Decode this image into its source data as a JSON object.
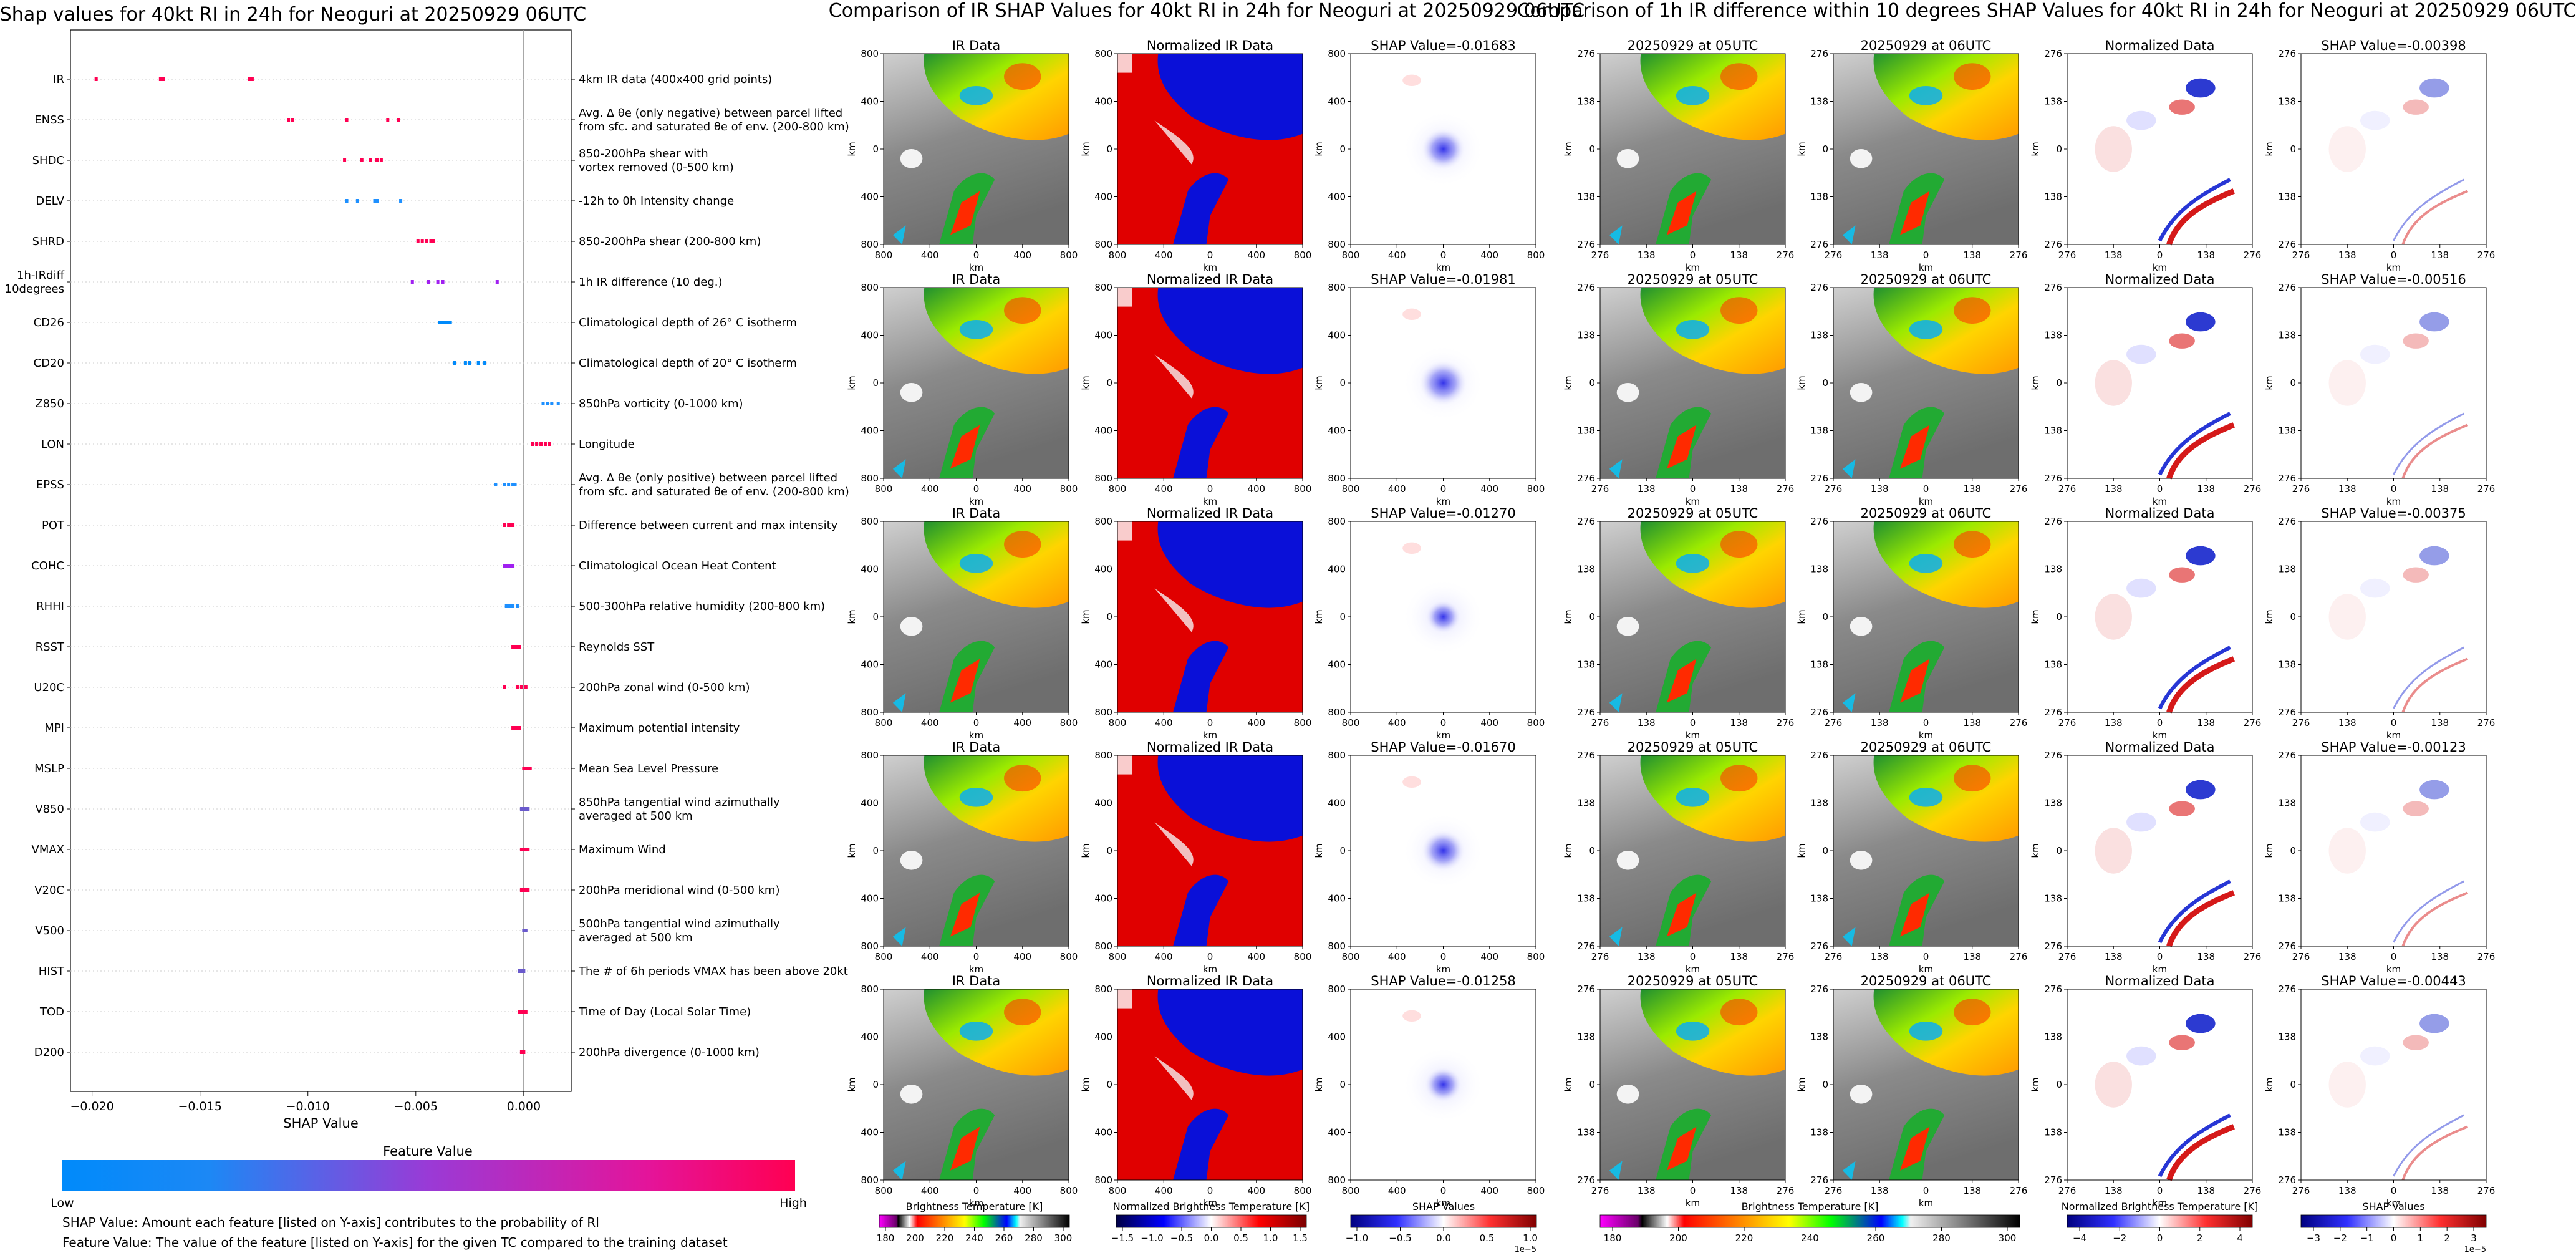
{
  "shap": {
    "title": "Shap values for 40kt RI in 24h for Neoguri at 20250929 06UTC",
    "xlabel": "SHAP Value",
    "colorbar_title": "Feature Value",
    "low_label": "Low",
    "high_label": "High",
    "note1": "SHAP Value: Amount each feature [listed on Y-axis] contributes to the probability of RI",
    "note2": "Feature Value: The value of the feature [listed on Y-axis] for the given TC compared to the training dataset",
    "colors": {
      "low": "#008afb",
      "mid": "#8a2be2",
      "high": "#ff0052"
    }
  },
  "comp1": {
    "title": "Comparison of IR SHAP Values for 40kt RI in 24h for Neoguri at 20250929 06UTC",
    "col_titles": [
      "IR Data",
      "Normalized IR Data"
    ],
    "shap_titles": [
      "SHAP Value=-0.01683",
      "SHAP Value=-0.01981",
      "SHAP Value=-0.01270",
      "SHAP Value=-0.01670",
      "SHAP Value=-0.01258"
    ],
    "ticks": [
      "800",
      "400",
      "0",
      "400",
      "800"
    ],
    "axis_label": "km",
    "cb1_label": "Brightness Temperature [K]",
    "cb1_ticks": [
      "180",
      "200",
      "220",
      "240",
      "260",
      "280",
      "300"
    ],
    "cb2_label": "Normalized Brightness Temperature [K]",
    "cb2_ticks": [
      "−1.5",
      "−1.0",
      "−0.5",
      "0.0",
      "0.5",
      "1.0",
      "1.5"
    ],
    "cb3_label": "SHAP Values",
    "cb3_ticks": [
      "−1.0",
      "−0.5",
      "0.0",
      "0.5",
      "1.0"
    ],
    "cb3_exp": "1e−5"
  },
  "comp2": {
    "title": "Comparison of 1h IR difference within 10 degrees SHAP Values for 40kt RI in 24h for Neoguri at 20250929 06UTC",
    "col_titles": [
      "20250929 at 05UTC",
      "20250929 at 06UTC",
      "Normalized Data"
    ],
    "shap_titles": [
      "SHAP Value=-0.00398",
      "SHAP Value=-0.00516",
      "SHAP Value=-0.00375",
      "SHAP Value=-0.00123",
      "SHAP Value=-0.00443"
    ],
    "ticks": [
      "276",
      "138",
      "0",
      "138",
      "276"
    ],
    "axis_label": "km",
    "cb1_label": "Brightness Temperature [K]",
    "cb1_ticks": [
      "180",
      "200",
      "220",
      "240",
      "260",
      "280",
      "300"
    ],
    "cb2_label": "Normalized Brightness Temperature [K]",
    "cb2_ticks": [
      "−4",
      "−2",
      "0",
      "2",
      "4"
    ],
    "cb3_label": "SHAP Values",
    "cb3_ticks": [
      "−3",
      "−2",
      "−1",
      "0",
      "1",
      "2",
      "3"
    ],
    "cb3_exp": "1e−5"
  },
  "chart_data": [
    {
      "type": "scatter",
      "title": "Shap values for 40kt RI in 24h for Neoguri at 20250929 06UTC",
      "xlabel": "SHAP Value",
      "xlim": [
        -0.021,
        0.0022
      ],
      "xticks": [
        "−0.020",
        "−0.015",
        "−0.010",
        "−0.005",
        "0.000"
      ],
      "xtick_values": [
        -0.02,
        -0.015,
        -0.01,
        -0.005,
        0.0
      ],
      "legend": "colorbar-bottom",
      "series": [
        {
          "name": "IR",
          "label": "4km IR data (400x400 grid points)",
          "color": "#ff0052",
          "values": [
            -0.01981,
            -0.01683,
            -0.0167,
            -0.0127,
            -0.01258
          ]
        },
        {
          "name": "ENSS",
          "label": "Avg. Δ θe (only negative) between parcel lifted\nfrom sfc. and saturated θe of env. (200-800 km)",
          "color": "#ff0052",
          "values": [
            -0.0109,
            -0.0107,
            -0.0082,
            -0.0063,
            -0.0058
          ]
        },
        {
          "name": "SHDC",
          "label": "850-200hPa shear with\nvortex removed (0-500 km)",
          "color": "#ff0052",
          "values": [
            -0.0083,
            -0.0075,
            -0.0071,
            -0.0068,
            -0.0066
          ]
        },
        {
          "name": "DELV",
          "label": "-12h to 0h Intensity change",
          "color": "#1e90ff",
          "values": [
            -0.0082,
            -0.0077,
            -0.0069,
            -0.0068,
            -0.0057
          ]
        },
        {
          "name": "SHRD",
          "label": "850-200hPa shear (200-800 km)",
          "color": "#ff0052",
          "values": [
            -0.0049,
            -0.0047,
            -0.0045,
            -0.0043,
            -0.0042
          ]
        },
        {
          "name": "1h-IRdiff\n10degrees",
          "label": "1h IR difference (10 deg.)",
          "color": "#a020f0",
          "values": [
            -0.00516,
            -0.00443,
            -0.00398,
            -0.00375,
            -0.00123
          ]
        },
        {
          "name": "CD26",
          "label": "Climatological depth of 26° C isotherm",
          "color": "#008afb",
          "values": [
            -0.0039,
            -0.0038,
            -0.0037,
            -0.0036,
            -0.0035,
            -0.0034
          ]
        },
        {
          "name": "CD20",
          "label": "Climatological depth of 20° C isotherm",
          "color": "#008afb",
          "values": [
            -0.0032,
            -0.0027,
            -0.0025,
            -0.0021,
            -0.0018
          ]
        },
        {
          "name": "Z850",
          "label": "850hPa vorticity (0-1000 km)",
          "color": "#1e90ff",
          "values": [
            0.0009,
            0.0011,
            0.0013,
            0.0016
          ]
        },
        {
          "name": "LON",
          "label": "Longitude",
          "color": "#ff0052",
          "values": [
            0.0004,
            0.0006,
            0.0008,
            0.001,
            0.0012
          ]
        },
        {
          "name": "EPSS",
          "label": "Avg. Δ θe (only positive) between parcel lifted\nfrom sfc. and saturated θe of env. (200-800 km)",
          "color": "#1e90ff",
          "values": [
            -0.0013,
            -0.0009,
            -0.0007,
            -0.0005,
            -0.0004
          ]
        },
        {
          "name": "POT",
          "label": "Difference between current and max intensity",
          "color": "#ff0052",
          "values": [
            -0.0009,
            -0.0007,
            -0.0006,
            -0.0005
          ]
        },
        {
          "name": "COHC",
          "label": "Climatological Ocean Heat Content",
          "color": "#a020f0",
          "values": [
            -0.0009,
            -0.0008,
            -0.0007,
            -0.0006,
            -0.0005
          ]
        },
        {
          "name": "RHHI",
          "label": "500-300hPa relative humidity (200-800 km)",
          "color": "#1e90ff",
          "values": [
            -0.0008,
            -0.0007,
            -0.0006,
            -0.0005,
            -0.0003
          ]
        },
        {
          "name": "RSST",
          "label": "Reynolds SST",
          "color": "#ff0052",
          "values": [
            -0.0005,
            -0.0004,
            -0.0003,
            -0.0002
          ]
        },
        {
          "name": "U20C",
          "label": "200hPa zonal wind (0-500 km)",
          "color": "#ff0052",
          "values": [
            -0.0009,
            -0.0003,
            -0.0001,
            0.0001
          ]
        },
        {
          "name": "MPI",
          "label": "Maximum potential intensity",
          "color": "#ff0052",
          "values": [
            -0.0005,
            -0.0004,
            -0.0003,
            -0.0002
          ]
        },
        {
          "name": "MSLP",
          "label": "Mean Sea Level Pressure",
          "color": "#ff0052",
          "values": [
            0.0,
            0.0001,
            0.0002,
            0.0003
          ]
        },
        {
          "name": "V850",
          "label": "850hPa tangential wind azimuthally\naveraged at 500 km",
          "color": "#6a5acd",
          "values": [
            -0.0001,
            0.0,
            0.0001,
            0.0002
          ]
        },
        {
          "name": "VMAX",
          "label": "Maximum Wind",
          "color": "#ff0052",
          "values": [
            -0.0001,
            0.0,
            0.0001,
            0.0002
          ]
        },
        {
          "name": "V20C",
          "label": "200hPa meridional wind (0-500 km)",
          "color": "#ff0052",
          "values": [
            -0.0001,
            0.0,
            0.0001,
            0.0002
          ]
        },
        {
          "name": "V500",
          "label": "500hPa tangential wind azimuthally\naveraged at 500 km",
          "color": "#6a5acd",
          "values": [
            0.0,
            0.0001
          ]
        },
        {
          "name": "HIST",
          "label": "The # of 6h periods VMAX has been above 20kt",
          "color": "#6a5acd",
          "values": [
            -0.0002,
            -0.0001,
            0.0
          ]
        },
        {
          "name": "TOD",
          "label": "Time of Day (Local Solar Time)",
          "color": "#ff0052",
          "values": [
            -0.0002,
            -0.0001,
            0.0,
            0.0001
          ]
        },
        {
          "name": "D200",
          "label": "200hPa divergence (0-1000 km)",
          "color": "#ff0052",
          "values": [
            -0.0001,
            0.0
          ]
        }
      ]
    },
    {
      "type": "heatmap",
      "title": "Comparison of IR SHAP Values for 40kt RI in 24h for Neoguri at 20250929 06UTC",
      "rows": 5,
      "columns": [
        "IR Data",
        "Normalized IR Data",
        "SHAP Value"
      ],
      "shap_values": [
        -0.01683,
        -0.01981,
        -0.0127,
        -0.0167,
        -0.01258
      ],
      "axis_range_km": [
        -800,
        800
      ],
      "colorbars": [
        {
          "label": "Brightness Temperature [K]",
          "range": [
            180,
            310
          ]
        },
        {
          "label": "Normalized Brightness Temperature [K]",
          "range": [
            -1.8,
            1.8
          ]
        },
        {
          "label": "SHAP Values",
          "range": [
            -1.0,
            1.0
          ],
          "scale": "1e-5"
        }
      ]
    },
    {
      "type": "heatmap",
      "title": "Comparison of 1h IR difference within 10 degrees SHAP Values for 40kt RI in 24h for Neoguri at 20250929 06UTC",
      "rows": 5,
      "columns": [
        "20250929 at 05UTC",
        "20250929 at 06UTC",
        "Normalized Data",
        "SHAP Value"
      ],
      "shap_values": [
        -0.00398,
        -0.00516,
        -0.00375,
        -0.00123,
        -0.00443
      ],
      "axis_range_km": [
        -276,
        276
      ],
      "colorbars": [
        {
          "label": "Brightness Temperature [K]",
          "range": [
            180,
            310
          ]
        },
        {
          "label": "Normalized Brightness Temperature [K]",
          "range": [
            -5,
            5
          ]
        },
        {
          "label": "SHAP Values",
          "range": [
            -3,
            3
          ],
          "scale": "1e-5"
        }
      ]
    }
  ]
}
